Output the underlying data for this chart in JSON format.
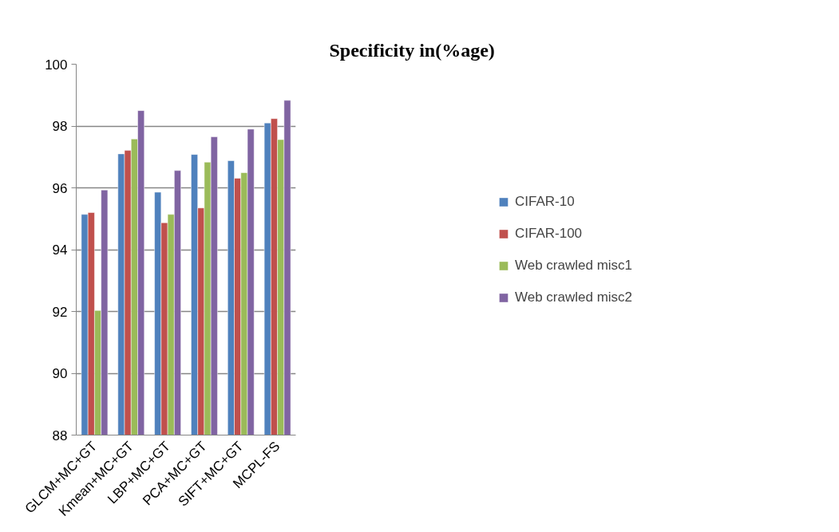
{
  "chart_data": {
    "type": "bar",
    "title": "Specificity in(%age)",
    "categories": [
      "GLCM+MC+GT",
      "Kmean+MC+GT",
      "LBP+MC+GT",
      "PCA+MC+GT",
      "SIFT+MC+GT",
      "MCPL-FS"
    ],
    "series": [
      {
        "name": "CIFAR-10",
        "color": "#4f81bd",
        "values": [
          95.14,
          97.1,
          95.86,
          97.08,
          96.88,
          98.1
        ]
      },
      {
        "name": "CIFAR-100",
        "color": "#c0504d",
        "values": [
          95.2,
          97.21,
          94.87,
          95.35,
          96.31,
          98.24
        ]
      },
      {
        "name": "Web crawled misc1",
        "color": "#9bbb59",
        "values": [
          92.03,
          97.58,
          95.14,
          96.83,
          96.49,
          97.56
        ]
      },
      {
        "name": "Web crawled misc2",
        "color": "#8064a2",
        "values": [
          95.93,
          98.5,
          96.56,
          97.65,
          97.9,
          98.83
        ]
      }
    ],
    "ylim": [
      88,
      100
    ],
    "yticks": [
      88,
      90,
      92,
      94,
      96,
      98,
      100
    ],
    "grid": "y",
    "legend": "right"
  }
}
